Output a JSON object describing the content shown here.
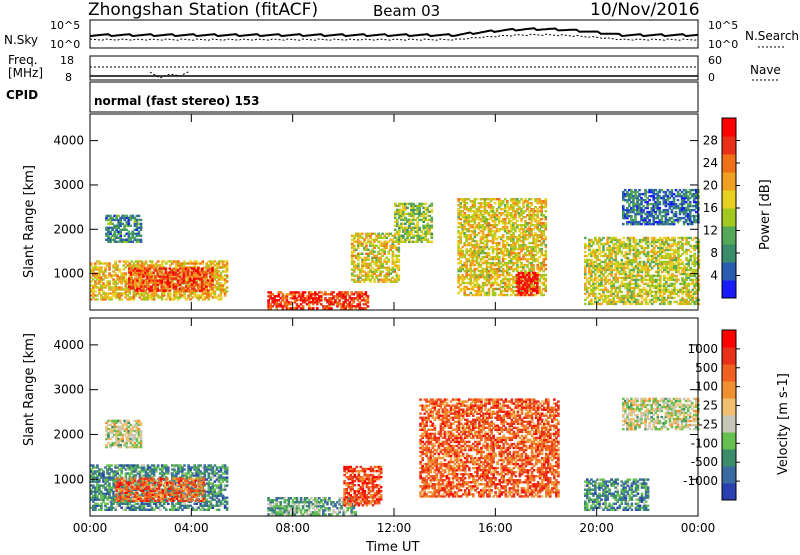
{
  "header": {
    "station": "Zhongshan Station (fitACF)",
    "beam": "Beam 03",
    "date": "10/Nov/2016"
  },
  "noise_panel": {
    "left_label": "N.Sky",
    "right_label": "N.Search",
    "ticks_left": [
      "10^5",
      "10^0"
    ],
    "ticks_right": [
      "10^5",
      "10^0"
    ]
  },
  "freq_panel": {
    "left_label_1": "Freq.",
    "left_label_2": "[MHz]",
    "right_label": "Nave",
    "ticks_left": [
      "18",
      "8"
    ],
    "ticks_right": [
      "60",
      "0"
    ]
  },
  "cpid": {
    "label": "CPID",
    "value": "normal (fast stereo) 153"
  },
  "chart_data": [
    {
      "type": "heatmap",
      "title": "",
      "ylabel": "Slant Range [km]",
      "xlabel": "",
      "ylim": [
        180,
        4600
      ],
      "yticks": [
        "1000",
        "2000",
        "3000",
        "4000"
      ],
      "xticks": [
        "00:00",
        "04:00",
        "08:00",
        "12:00",
        "16:00",
        "20:00",
        "00:00"
      ],
      "colorbar": {
        "label": "Power [dB]",
        "ticks": [
          "4",
          "8",
          "12",
          "16",
          "20",
          "24",
          "28"
        ],
        "colors": [
          "#1a1aff",
          "#2a5db0",
          "#3a8c6a",
          "#54a858",
          "#a3c820",
          "#e8d020",
          "#f0a020",
          "#f07018",
          "#e83018",
          "#ff0000"
        ]
      },
      "regions": [
        {
          "t": [
            0.0,
            5.4
          ],
          "r": [
            400,
            1300
          ],
          "v": 0.6
        },
        {
          "t": [
            1.5,
            4.8
          ],
          "r": [
            600,
            1100
          ],
          "v": 0.82
        },
        {
          "t": [
            0.6,
            2.0
          ],
          "r": [
            1700,
            2300
          ],
          "v": 0.25
        },
        {
          "t": [
            7.0,
            11.0
          ],
          "r": [
            200,
            600
          ],
          "v": 0.85
        },
        {
          "t": [
            10.3,
            12.2
          ],
          "r": [
            800,
            1900
          ],
          "v": 0.55
        },
        {
          "t": [
            12.0,
            13.5
          ],
          "r": [
            1700,
            2600
          ],
          "v": 0.45
        },
        {
          "t": [
            14.5,
            18.0
          ],
          "r": [
            500,
            2700
          ],
          "v": 0.55
        },
        {
          "t": [
            16.8,
            17.6
          ],
          "r": [
            500,
            1000
          ],
          "v": 0.95
        },
        {
          "t": [
            19.5,
            24.0
          ],
          "r": [
            300,
            1800
          ],
          "v": 0.5
        },
        {
          "t": [
            21.0,
            24.0
          ],
          "r": [
            2100,
            2900
          ],
          "v": 0.2
        }
      ]
    },
    {
      "type": "heatmap",
      "title": "",
      "ylabel": "Slant Range [km]",
      "xlabel": "Time UT",
      "ylim": [
        180,
        4600
      ],
      "yticks": [
        "1000",
        "2000",
        "3000",
        "4000"
      ],
      "xticks": [
        "00:00",
        "04:00",
        "08:00",
        "12:00",
        "16:00",
        "20:00",
        "00:00"
      ],
      "colorbar": {
        "label": "Velocity [m s-1]",
        "ticks": [
          "1000",
          "500",
          "100",
          "25",
          "-25",
          "-100",
          "-500",
          "-1000"
        ],
        "colors": [
          "#2a3fb0",
          "#3a6aa0",
          "#3c8c6c",
          "#66c050",
          "#c8c8b8",
          "#f0c070",
          "#f09030",
          "#f06020",
          "#e83018",
          "#ff0000"
        ]
      },
      "regions": [
        {
          "t": [
            0.0,
            5.4
          ],
          "r": [
            300,
            1300
          ],
          "v": 0.25
        },
        {
          "t": [
            1.0,
            4.5
          ],
          "r": [
            500,
            1000
          ],
          "v": 0.75
        },
        {
          "t": [
            0.6,
            2.0
          ],
          "r": [
            1700,
            2300
          ],
          "v": 0.45
        },
        {
          "t": [
            7.0,
            10.5
          ],
          "r": [
            200,
            600
          ],
          "v": 0.3
        },
        {
          "t": [
            10.0,
            11.5
          ],
          "r": [
            400,
            1300
          ],
          "v": 0.8
        },
        {
          "t": [
            13.0,
            18.5
          ],
          "r": [
            600,
            2800
          ],
          "v": 0.75
        },
        {
          "t": [
            19.5,
            22.0
          ],
          "r": [
            300,
            1000
          ],
          "v": 0.25
        },
        {
          "t": [
            21.0,
            24.0
          ],
          "r": [
            2100,
            2800
          ],
          "v": 0.45
        }
      ]
    }
  ]
}
